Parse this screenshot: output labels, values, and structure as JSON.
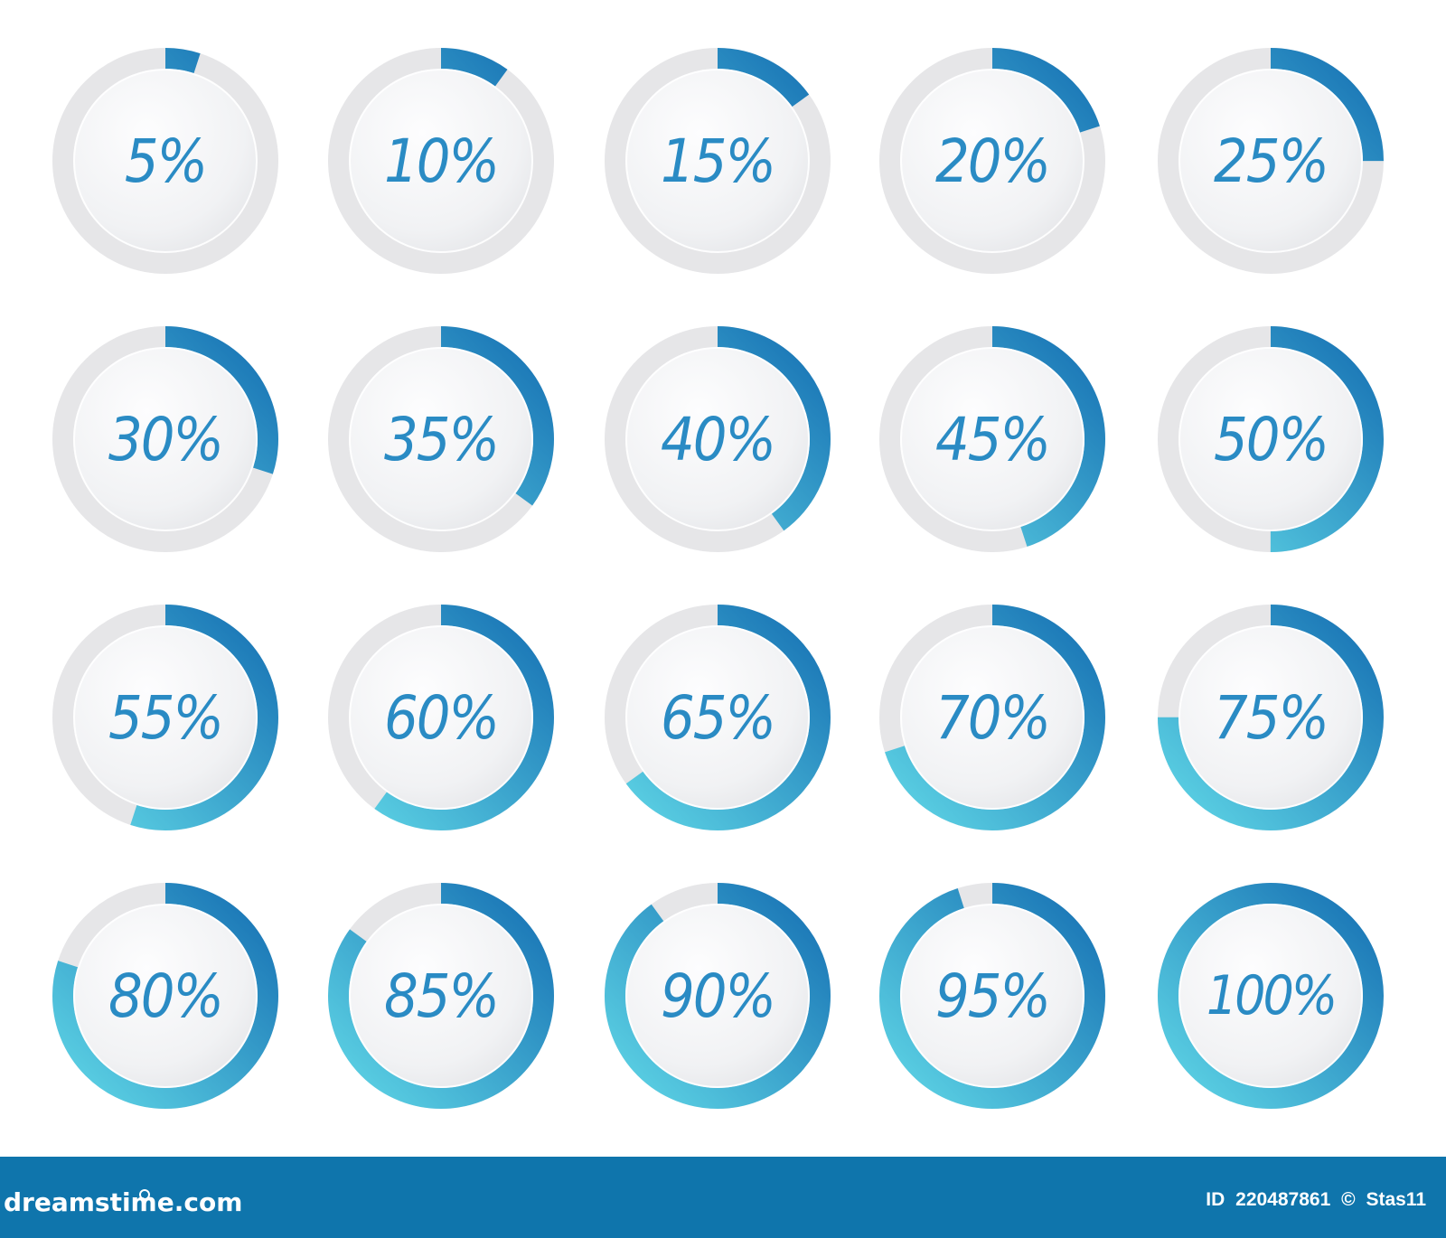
{
  "indicators": [
    {
      "label": "5%",
      "value": 5
    },
    {
      "label": "10%",
      "value": 10
    },
    {
      "label": "15%",
      "value": 15
    },
    {
      "label": "20%",
      "value": 20
    },
    {
      "label": "25%",
      "value": 25
    },
    {
      "label": "30%",
      "value": 30
    },
    {
      "label": "35%",
      "value": 35
    },
    {
      "label": "40%",
      "value": 40
    },
    {
      "label": "45%",
      "value": 45
    },
    {
      "label": "50%",
      "value": 50
    },
    {
      "label": "55%",
      "value": 55
    },
    {
      "label": "60%",
      "value": 60
    },
    {
      "label": "65%",
      "value": 65
    },
    {
      "label": "70%",
      "value": 70
    },
    {
      "label": "75%",
      "value": 75
    },
    {
      "label": "80%",
      "value": 80
    },
    {
      "label": "85%",
      "value": 85
    },
    {
      "label": "90%",
      "value": 90
    },
    {
      "label": "95%",
      "value": 95
    },
    {
      "label": "100%",
      "value": 100
    }
  ],
  "colors": {
    "progress_start": "#5fd6e6",
    "progress_end": "#1670b3",
    "track": "#e6e6e8",
    "label": "#2a8bc4",
    "footer": "#0f75ac"
  },
  "footer": {
    "brand": "dreamstime.com",
    "id_label": "ID",
    "id_number": "220487861",
    "copyright_symbol": "©",
    "author": "Stas11"
  }
}
